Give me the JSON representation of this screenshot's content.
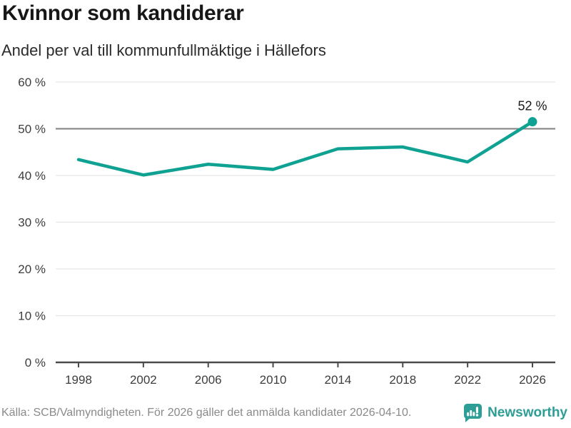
{
  "header": {
    "title": "Kvinnor som kandiderar",
    "subtitle": "Andel per val till kommunfullmäktige i Hällefors"
  },
  "chart_data": {
    "type": "line",
    "title": "Kvinnor som kandiderar",
    "subtitle": "Andel per val till kommunfullmäktige i Hällefors",
    "x": [
      1998,
      2002,
      2006,
      2010,
      2014,
      2018,
      2022,
      2026
    ],
    "values": [
      43.4,
      40.1,
      42.4,
      41.3,
      45.7,
      46.1,
      42.9,
      51.5
    ],
    "ylim": [
      0,
      60
    ],
    "ytick_step": 10,
    "ytick_suffix": " %",
    "grid": "horizontal",
    "highlight_gridline": 50,
    "end_label": "52 %",
    "line_color": "#0fa293",
    "marker": "circle-on-last-point",
    "legend": "none"
  },
  "footer": {
    "source": "Källa: SCB/Valmyndigheten. För 2026 gäller det anmälda kandidater 2026-04-10.",
    "brand": "Newsworthy"
  },
  "colors": {
    "accent": "#0fa293",
    "brand": "#2d9e96",
    "grid": "#e6e6e6",
    "grid_highlight": "#7f7f7f",
    "axis": "#4a4a4a",
    "tick_text": "#3d3d3d",
    "title_text": "#171717",
    "subtitle_text": "#2b2b2b",
    "annotation_text": "#1a1a1a",
    "muted_text": "#8a8a8a"
  }
}
